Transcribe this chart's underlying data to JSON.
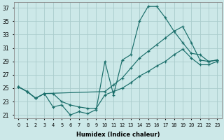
{
  "xlabel": "Humidex (Indice chaleur)",
  "bg_color": "#cce8e8",
  "grid_color": "#aacccc",
  "line_color": "#1a6e6a",
  "xlim": [
    -0.5,
    23.5
  ],
  "ylim": [
    20.5,
    37.8
  ],
  "yticks": [
    21,
    23,
    25,
    27,
    29,
    31,
    33,
    35,
    37
  ],
  "xticks": [
    0,
    1,
    2,
    3,
    4,
    5,
    6,
    7,
    8,
    9,
    10,
    11,
    12,
    13,
    14,
    15,
    16,
    17,
    18,
    19,
    20,
    21,
    22,
    23
  ],
  "line1_x": [
    0,
    1,
    2,
    3,
    4,
    5,
    6,
    7,
    8,
    9,
    10,
    11,
    12,
    13,
    14,
    15,
    16,
    17,
    18,
    19,
    20,
    21,
    22,
    23
  ],
  "line1_y": [
    25.2,
    24.5,
    23.5,
    24.2,
    22.2,
    22.5,
    21.0,
    21.5,
    21.2,
    21.8,
    29.0,
    24.0,
    29.2,
    30.0,
    35.0,
    37.2,
    37.2,
    35.5,
    33.5,
    31.8,
    30.2,
    30.0,
    29.0,
    29.2
  ],
  "line2_x": [
    0,
    1,
    2,
    3,
    10,
    11,
    12,
    13,
    14,
    15,
    16,
    17,
    18,
    19,
    20,
    21,
    22,
    23
  ],
  "line2_y": [
    25.2,
    24.5,
    23.5,
    24.2,
    24.5,
    25.5,
    26.5,
    28.0,
    29.5,
    30.5,
    31.5,
    32.5,
    33.5,
    34.2,
    31.8,
    29.2,
    29.0,
    29.2
  ],
  "line3_x": [
    0,
    1,
    2,
    3,
    4,
    5,
    6,
    7,
    8,
    9,
    10,
    11,
    12,
    13,
    14,
    15,
    16,
    17,
    18,
    19,
    20,
    21,
    22,
    23
  ],
  "line3_y": [
    25.2,
    24.5,
    23.5,
    24.2,
    24.2,
    23.0,
    22.5,
    22.2,
    22.0,
    22.0,
    24.0,
    24.5,
    25.0,
    25.8,
    26.8,
    27.5,
    28.3,
    29.0,
    30.0,
    30.8,
    29.5,
    28.5,
    28.5,
    29.0
  ]
}
